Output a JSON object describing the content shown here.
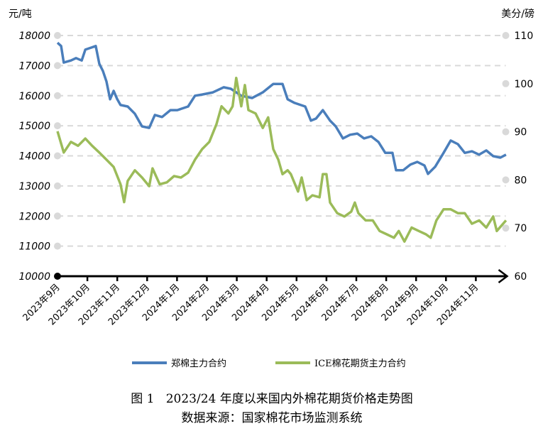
{
  "chart_data": {
    "type": "line",
    "title": "图 1   2023/24 年度以来国内外棉花期货价格走势图",
    "source": "数据来源：国家棉花市场监测系统",
    "left_axis": {
      "label": "元/吨",
      "ylim": [
        10000,
        18000
      ],
      "ticks": [
        "10000",
        "11000",
        "12000",
        "13000",
        "14000",
        "15000",
        "16000",
        "17000",
        "18000"
      ]
    },
    "right_axis": {
      "label": "美分/磅",
      "ylim": [
        60,
        110
      ],
      "ticks": [
        "60",
        "70",
        "80",
        "90",
        "100",
        "110"
      ]
    },
    "x_categories": [
      "2023年9月",
      "2023年10月",
      "2023年11月",
      "2023年12月",
      "2024年1月",
      "2024年2月",
      "2024年3月",
      "2024年4月",
      "2024年5月",
      "2024年6月",
      "2024年7月",
      "2024年8月",
      "2024年9月",
      "2024年10月",
      "2024年11月"
    ],
    "x_note": "x values are months elapsed since 2023年9月",
    "grid": true,
    "legend_position": "bottom",
    "series": [
      {
        "name": "郑棉主力合约",
        "axis": "left",
        "color": "#4a7ebb",
        "x": [
          0,
          0.12,
          0.21,
          0.45,
          0.62,
          0.81,
          0.93,
          1.28,
          1.4,
          1.52,
          1.64,
          1.76,
          1.88,
          2.0,
          2.11,
          2.35,
          2.59,
          2.83,
          3.07,
          3.26,
          3.5,
          3.78,
          4.01,
          4.37,
          4.6,
          4.84,
          5.2,
          5.56,
          5.8,
          6.15,
          6.51,
          6.87,
          7.22,
          7.53,
          7.7,
          7.93,
          8.29,
          8.48,
          8.65,
          8.88,
          9.12,
          9.31,
          9.55,
          9.79,
          10.03,
          10.26,
          10.5,
          10.74,
          10.97,
          11.21,
          11.33,
          11.57,
          11.81,
          12.04,
          12.28,
          12.4,
          12.64,
          12.92,
          13.16,
          13.4,
          13.63,
          13.87,
          14.11,
          14.35,
          14.58,
          14.82,
          15.01
        ],
        "values": [
          17760,
          17650,
          17100,
          17170,
          17250,
          17170,
          17530,
          17650,
          17060,
          16820,
          16470,
          15880,
          16160,
          15880,
          15690,
          15640,
          15400,
          14980,
          14930,
          15360,
          15290,
          15520,
          15520,
          15640,
          16000,
          16040,
          16110,
          16280,
          16230,
          16000,
          15920,
          16110,
          16390,
          16390,
          15880,
          15760,
          15640,
          15170,
          15240,
          15520,
          15170,
          14980,
          14580,
          14700,
          14740,
          14580,
          14650,
          14460,
          14100,
          14100,
          13520,
          13520,
          13710,
          13800,
          13680,
          13400,
          13640,
          14100,
          14510,
          14390,
          14100,
          14150,
          14040,
          14180,
          13990,
          13940,
          14040
        ]
      },
      {
        "name": "ICE棉花期货主力合约",
        "axis": "right",
        "color": "#9bbb59",
        "x": [
          0,
          0.21,
          0.45,
          0.69,
          0.93,
          1.16,
          1.4,
          1.64,
          1.88,
          2.11,
          2.23,
          2.35,
          2.59,
          2.83,
          3.07,
          3.18,
          3.42,
          3.66,
          3.9,
          4.13,
          4.37,
          4.6,
          4.84,
          5.08,
          5.32,
          5.49,
          5.72,
          5.86,
          5.98,
          6.15,
          6.27,
          6.39,
          6.63,
          6.87,
          7.05,
          7.22,
          7.39,
          7.53,
          7.7,
          7.81,
          8.05,
          8.17,
          8.34,
          8.53,
          8.77,
          8.88,
          9.0,
          9.12,
          9.36,
          9.6,
          9.83,
          9.95,
          10.07,
          10.31,
          10.55,
          10.78,
          11.02,
          11.26,
          11.42,
          11.61,
          11.85,
          12.09,
          12.33,
          12.49,
          12.68,
          12.92,
          13.16,
          13.4,
          13.63,
          13.87,
          14.11,
          14.35,
          14.58,
          14.7,
          15.01
        ],
        "values": [
          90.1,
          85.7,
          87.9,
          87.1,
          88.6,
          87.1,
          85.7,
          84.2,
          82.7,
          79.1,
          75.4,
          79.8,
          82.0,
          80.5,
          78.7,
          82.4,
          79.1,
          79.5,
          80.8,
          80.5,
          81.5,
          84.2,
          86.4,
          87.9,
          91.6,
          95.3,
          93.8,
          95.3,
          101.2,
          95.3,
          99.7,
          94.5,
          93.8,
          90.8,
          93.0,
          86.4,
          84.2,
          81.2,
          82.0,
          81.2,
          77.6,
          80.5,
          75.8,
          76.8,
          76.4,
          81.2,
          81.2,
          75.3,
          73.1,
          72.4,
          73.4,
          75.3,
          73.1,
          71.6,
          71.6,
          69.4,
          68.7,
          68.0,
          69.4,
          67.2,
          70.1,
          69.4,
          68.7,
          68.0,
          71.6,
          73.9,
          73.9,
          73.1,
          73.1,
          70.9,
          71.6,
          70.1,
          72.4,
          69.4,
          71.6
        ]
      }
    ]
  }
}
